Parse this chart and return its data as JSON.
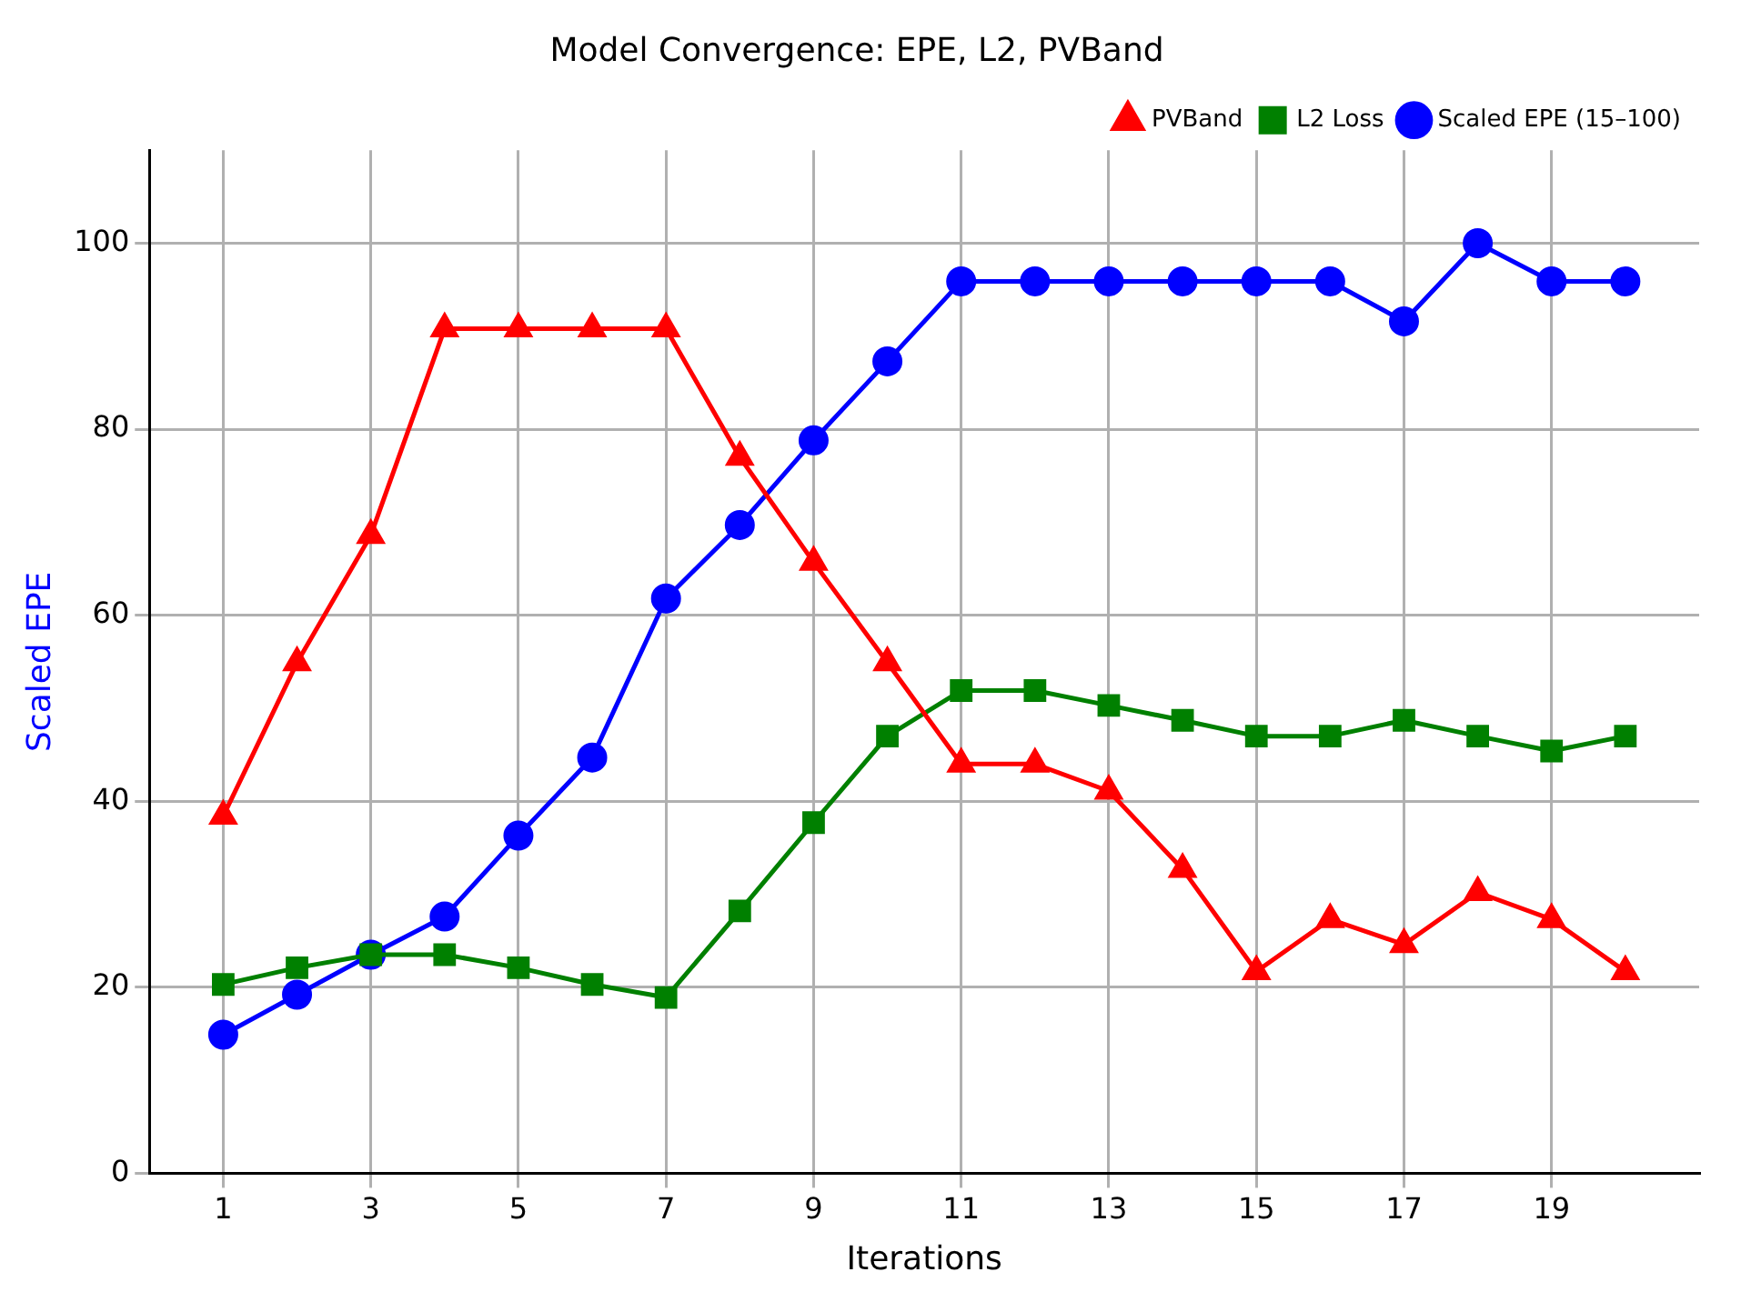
{
  "chart_data": {
    "type": "line",
    "title": "Model Convergence: EPE, L2, PVBand",
    "xlabel": "Iterations",
    "ylabel": "Scaled EPE",
    "x": [
      1,
      2,
      3,
      4,
      5,
      6,
      7,
      8,
      9,
      10,
      11,
      12,
      13,
      14,
      15,
      16,
      17,
      18,
      19,
      20
    ],
    "series": [
      {
        "name": "Scaled EPE (15–100)",
        "color": "#0000ff",
        "marker": "circle",
        "values": [
          14.9,
          19.2,
          23.5,
          27.6,
          36.3,
          44.7,
          61.8,
          69.7,
          78.8,
          87.3,
          95.9,
          95.9,
          95.9,
          95.9,
          95.9,
          95.9,
          91.6,
          100,
          95.9,
          95.9
        ]
      },
      {
        "name": "L2 Loss",
        "color": "#008000",
        "marker": "square",
        "values": [
          20.3,
          22.1,
          23.5,
          23.5,
          22.1,
          20.3,
          18.9,
          28.2,
          37.7,
          47.0,
          51.9,
          51.9,
          50.3,
          48.7,
          47.0,
          47.0,
          48.7,
          47.0,
          45.4,
          47.0
        ]
      },
      {
        "name": "PVBand",
        "color": "#ff0000",
        "marker": "triangle",
        "values": [
          38.4,
          54.9,
          68.6,
          90.8,
          90.8,
          90.8,
          90.8,
          77.0,
          65.7,
          54.9,
          44.0,
          44.0,
          41.1,
          32.7,
          21.7,
          27.3,
          24.6,
          30.2,
          27.3,
          21.7
        ]
      }
    ],
    "xlim": [
      0,
      21
    ],
    "xticks": [
      1,
      3,
      5,
      7,
      9,
      11,
      13,
      15,
      17,
      19
    ],
    "ylim": [
      0,
      110
    ],
    "yticks": [
      0,
      20,
      40,
      60,
      80,
      100
    ],
    "grid": true,
    "legend": "top right",
    "line_style": "solid"
  }
}
